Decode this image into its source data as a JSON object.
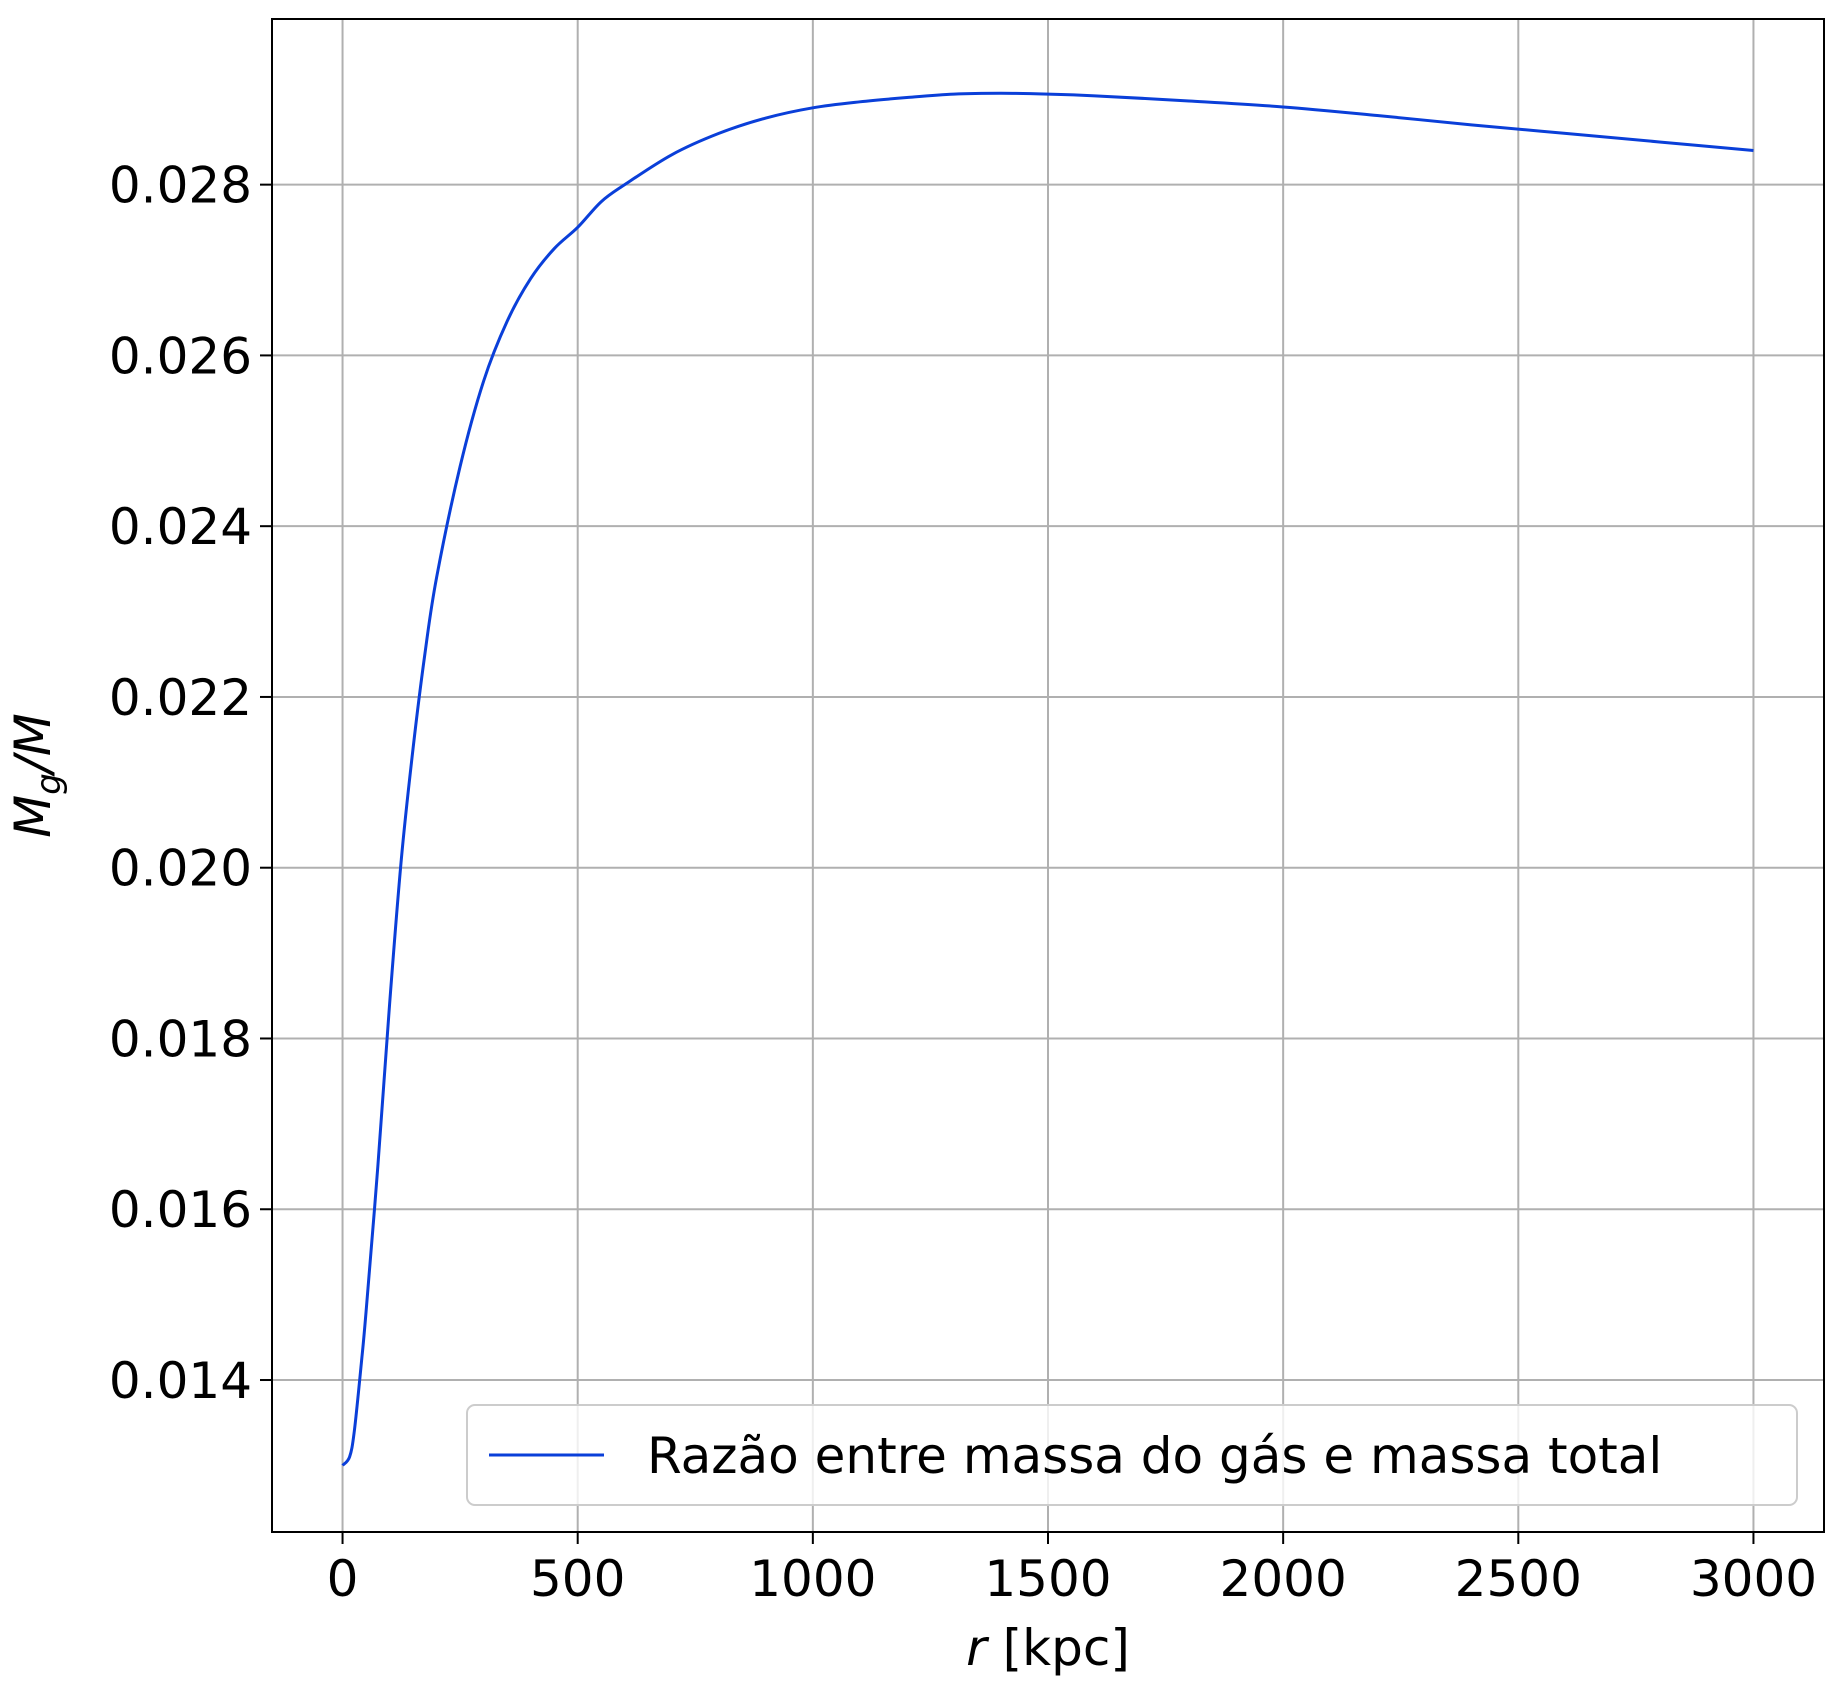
{
  "chart_data": {
    "type": "line",
    "title": "",
    "xlabel_italic": "r",
    "xlabel_rest": " [kpc]",
    "ylabel_main": "M",
    "ylabel_sub": "g",
    "ylabel_rest": "/M",
    "xlim": [
      -150,
      3150
    ],
    "ylim": [
      0.01222,
      0.02994
    ],
    "xticks": [
      0,
      500,
      1000,
      1500,
      2000,
      2500,
      3000
    ],
    "xtick_labels": [
      "0",
      "500",
      "1000",
      "1500",
      "2000",
      "2500",
      "3000"
    ],
    "yticks": [
      0.014,
      0.016,
      0.018,
      0.02,
      0.022,
      0.024,
      0.026,
      0.028
    ],
    "ytick_labels": [
      "0.014",
      "0.016",
      "0.018",
      "0.020",
      "0.022",
      "0.024",
      "0.026",
      "0.028"
    ],
    "grid": true,
    "legend_position": "lower-right",
    "series": [
      {
        "name": "Razão entre massa do gás e massa total",
        "color": "#0a3fd9",
        "x": [
          0,
          15,
          25,
          40,
          50,
          75,
          100,
          125,
          150,
          175,
          200,
          250,
          300,
          350,
          400,
          450,
          500,
          550,
          600,
          700,
          800,
          900,
          1000,
          1100,
          1200,
          1300,
          1400,
          1500,
          1600,
          1800,
          2000,
          2200,
          2400,
          2600,
          2800,
          3000
        ],
        "y": [
          0.013,
          0.0131,
          0.0134,
          0.0142,
          0.0148,
          0.0165,
          0.0184,
          0.0201,
          0.0214,
          0.0225,
          0.0234,
          0.0247,
          0.0257,
          0.0264,
          0.0269,
          0.02725,
          0.0275,
          0.0278,
          0.028,
          0.02835,
          0.0286,
          0.02878,
          0.0289,
          0.02897,
          0.02902,
          0.02906,
          0.02907,
          0.02906,
          0.02904,
          0.02898,
          0.02891,
          0.02881,
          0.0287,
          0.0286,
          0.0285,
          0.0284
        ]
      }
    ]
  }
}
